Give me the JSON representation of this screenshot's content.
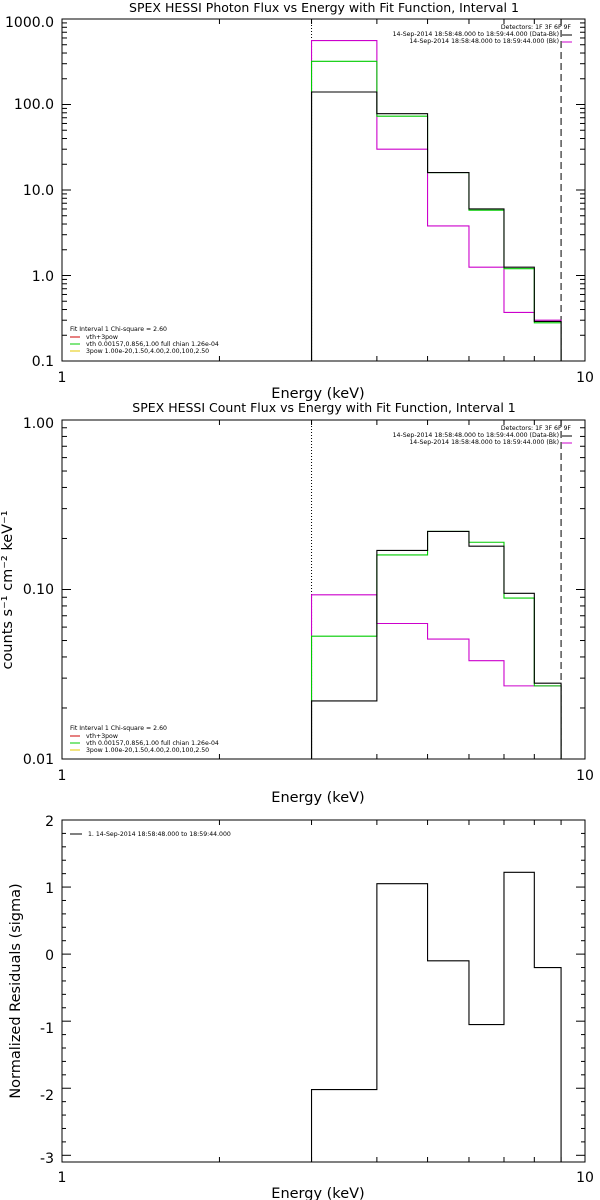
{
  "chart_data": [
    {
      "type": "line",
      "title": "SPEX HESSI Photon Flux vs Energy with Fit Function, Interval 1",
      "xlabel": "Energy (keV)",
      "ylabel": "",
      "xscale": "log",
      "yscale": "log",
      "xlim": [
        1,
        10
      ],
      "ylim": [
        0.1,
        1000
      ],
      "x_tick_labels": [
        "1",
        "10"
      ],
      "y_tick_labels": [
        "0.1",
        "1.0",
        "10.0",
        "100.0",
        "1000.0"
      ],
      "detectors_label": "Detectors: 1F 3F 6F 9F",
      "legend_right": [
        {
          "label": "14-Sep-2014 18:58:48.000 to 18:59:44.000 (Data-Bk)",
          "color": "#000000"
        },
        {
          "label": "14-Sep-2014 18:58:48.000 to 18:59:44.000 (Bk)",
          "color": "#cc00cc"
        }
      ],
      "fit_header": "Fit Interval 1    Chi-square = 2.60",
      "legend_left": [
        {
          "label": "vth+3pow",
          "color": "#cc0000"
        },
        {
          "label": "vth 0.00157,0.856,1.00   full chian 1.26e-04",
          "color": "#00cc00"
        },
        {
          "label": "3pow 1.00e-20,1.50,4.00,2.00,100,2.50",
          "color": "#e6c800"
        }
      ],
      "vlines": [
        {
          "x": 3.0,
          "style": "dotted",
          "color": "#000000"
        },
        {
          "x": 9.0,
          "style": "dashed",
          "color": "#000000"
        }
      ],
      "bin_edges": [
        3.0,
        4.0,
        5.0,
        6.0,
        7.0,
        8.0,
        9.0
      ],
      "series": [
        {
          "color": "#cc00cc",
          "values": [
            560,
            30,
            3.8,
            1.25,
            0.37,
            0.3
          ]
        },
        {
          "color": "#00cc00",
          "values": [
            320,
            73,
            16,
            5.8,
            1.2,
            0.28
          ]
        },
        {
          "color": "#000000",
          "values": [
            140,
            78,
            16,
            6.0,
            1.25,
            0.29
          ]
        }
      ]
    },
    {
      "type": "line",
      "title": "SPEX HESSI Count Flux vs Energy with Fit Function, Interval 1",
      "xlabel": "Energy (keV)",
      "ylabel": "counts s⁻¹ cm⁻² keV⁻¹",
      "xscale": "log",
      "yscale": "log",
      "xlim": [
        1,
        10
      ],
      "ylim": [
        0.01,
        1.0
      ],
      "x_tick_labels": [
        "1",
        "10"
      ],
      "y_tick_labels": [
        "0.01",
        "0.10",
        "1.00"
      ],
      "detectors_label": "Detectors: 1F 3F 6F 9F",
      "legend_right": [
        {
          "label": "14-Sep-2014 18:58:48.000 to 18:59:44.000 (Data-Bk)",
          "color": "#000000"
        },
        {
          "label": "14-Sep-2014 18:58:48.000 to 18:59:44.000 (Bk)",
          "color": "#cc00cc"
        }
      ],
      "fit_header": "Fit Interval 1    Chi-square = 2.60",
      "legend_left": [
        {
          "label": "vth+3pow",
          "color": "#cc0000"
        },
        {
          "label": "vth 0.00157,0.856,1.00   full chian 1.26e-04",
          "color": "#00cc00"
        },
        {
          "label": "3pow 1.00e-20,1.50,4.00,2.00,100,2.50",
          "color": "#e6c800"
        }
      ],
      "vlines": [
        {
          "x": 3.0,
          "style": "dotted",
          "color": "#000000"
        },
        {
          "x": 9.0,
          "style": "dashed",
          "color": "#000000"
        }
      ],
      "bin_edges": [
        3.0,
        4.0,
        5.0,
        6.0,
        7.0,
        8.0,
        9.0
      ],
      "series": [
        {
          "color": "#cc00cc",
          "values": [
            0.093,
            0.063,
            0.051,
            0.038,
            0.027,
            0.027
          ]
        },
        {
          "color": "#00cc00",
          "values": [
            0.053,
            0.16,
            0.22,
            0.19,
            0.089,
            0.027
          ]
        },
        {
          "color": "#000000",
          "values": [
            0.022,
            0.17,
            0.22,
            0.18,
            0.095,
            0.028
          ]
        }
      ]
    },
    {
      "type": "line",
      "title": "",
      "xlabel": "Energy (keV)",
      "ylabel": "Normalized Residuals (sigma)",
      "xscale": "log",
      "yscale": "linear",
      "xlim": [
        1,
        10
      ],
      "ylim": [
        -3.1,
        2
      ],
      "x_tick_labels": [
        "1",
        "10"
      ],
      "y_tick_labels": [
        "-3",
        "-2",
        "-1",
        "0",
        "1",
        "2"
      ],
      "legend": [
        {
          "label": "1. 14-Sep-2014 18:58:48.000 to 18:59:44.000",
          "color": "#000000"
        }
      ],
      "bin_edges": [
        3.0,
        4.0,
        5.0,
        6.0,
        7.0,
        8.0,
        9.0
      ],
      "series": [
        {
          "color": "#000000",
          "values": [
            -2.02,
            1.05,
            -0.1,
            -1.05,
            1.22,
            -0.2
          ]
        }
      ]
    }
  ]
}
